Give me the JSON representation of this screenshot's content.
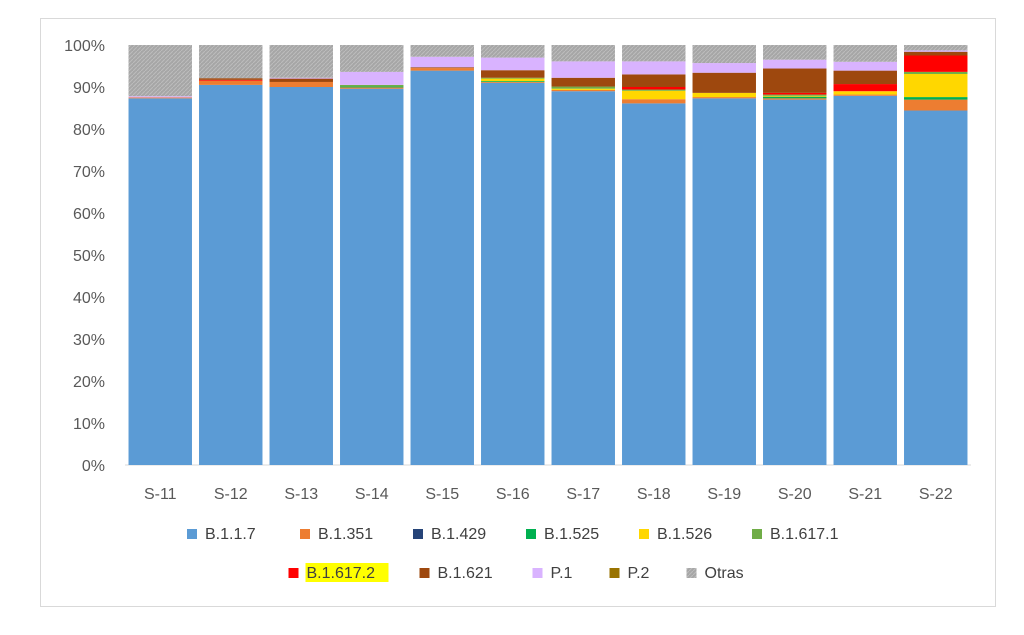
{
  "chart_data": {
    "type": "bar",
    "stacked": true,
    "categories": [
      "S-11",
      "S-12",
      "S-13",
      "S-14",
      "S-15",
      "S-16",
      "S-17",
      "S-18",
      "S-19",
      "S-20",
      "S-21",
      "S-22"
    ],
    "ylim": [
      0,
      100
    ],
    "yticks": [
      "0%",
      "10%",
      "20%",
      "30%",
      "40%",
      "50%",
      "60%",
      "70%",
      "80%",
      "90%",
      "100%"
    ],
    "grid": false,
    "legend_position": "bottom",
    "series": [
      {
        "name": "B.1.1.7",
        "color": "#5b9bd5",
        "values": [
          87.3,
          90.5,
          90.0,
          89.6,
          93.9,
          91.0,
          89.0,
          86.1,
          87.3,
          87.0,
          87.9,
          84.4
        ]
      },
      {
        "name": "B.1.351",
        "color": "#ed7d31",
        "values": [
          0.2,
          1.0,
          1.2,
          0.3,
          0.6,
          0.2,
          0.3,
          1.0,
          0.3,
          0.3,
          0.3,
          2.6
        ]
      },
      {
        "name": "B.1.429",
        "color": "#264478",
        "values": [
          0,
          0,
          0,
          0,
          0,
          0,
          0,
          0,
          0,
          0,
          0,
          0
        ]
      },
      {
        "name": "B.1.525",
        "color": "#00b050",
        "values": [
          0,
          0,
          0,
          0.2,
          0,
          0.2,
          0,
          0,
          0,
          0.4,
          0,
          0.6
        ]
      },
      {
        "name": "B.1.526",
        "color": "#ffd700",
        "values": [
          0,
          0,
          0,
          0,
          0,
          0.6,
          0.3,
          2.0,
          1.0,
          0.2,
          0.8,
          5.5
        ]
      },
      {
        "name": "B.1.617.1",
        "color": "#70ad47",
        "values": [
          0,
          0,
          0,
          0.4,
          0,
          0.2,
          0.5,
          0.3,
          0,
          0.3,
          0,
          0.5
        ]
      },
      {
        "name": "B.1.617.2",
        "color": "#ff0000",
        "values": [
          0,
          0.2,
          0,
          0,
          0,
          0,
          0,
          0.6,
          0,
          0.4,
          1.7,
          3.9
        ]
      },
      {
        "name": "B.1.621",
        "color": "#9e480e",
        "values": [
          0,
          0.4,
          0.8,
          0,
          0.2,
          1.8,
          2.1,
          3.0,
          4.8,
          5.8,
          3.2,
          0.9
        ]
      },
      {
        "name": "P.1",
        "color": "#d9b3ff",
        "values": [
          0.3,
          0,
          0.2,
          3.1,
          2.5,
          3.0,
          3.9,
          3.1,
          2.3,
          2.1,
          2.1,
          0.3
        ]
      },
      {
        "name": "P.2",
        "color": "#997300",
        "values": [
          0,
          0,
          0,
          0,
          0,
          0,
          0,
          0,
          0,
          0,
          0,
          0
        ]
      },
      {
        "name": "Otras",
        "color": "#a6a6a6",
        "values": [
          12.2,
          7.9,
          7.8,
          6.4,
          2.8,
          3.0,
          3.9,
          3.9,
          4.3,
          3.5,
          4.0,
          1.3
        ]
      }
    ],
    "highlighted_legend_entry": "B.1.617.2",
    "highlight_color": "#ffff00"
  }
}
